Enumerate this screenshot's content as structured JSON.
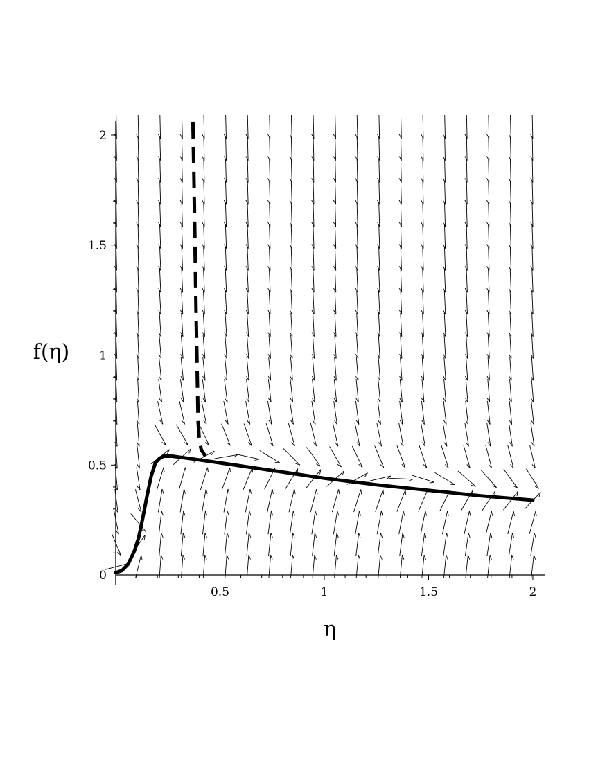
{
  "chart_data": {
    "type": "line",
    "title": "",
    "xlabel": "η",
    "ylabel": "f(η)",
    "xlim": [
      0,
      2.06
    ],
    "ylim": [
      0,
      2.06
    ],
    "x_ticks": [
      {
        "value": 0.5,
        "label": "0.5"
      },
      {
        "value": 1,
        "label": "1"
      },
      {
        "value": 1.5,
        "label": "1.5"
      },
      {
        "value": 2,
        "label": "2"
      }
    ],
    "y_ticks": [
      {
        "value": 0,
        "label": "0"
      },
      {
        "value": 0.5,
        "label": "0.5"
      },
      {
        "value": 1,
        "label": "1"
      },
      {
        "value": 1.5,
        "label": "1.5"
      },
      {
        "value": 2,
        "label": "2"
      }
    ],
    "grid": false,
    "legend": "none",
    "series": [
      {
        "style": "solid",
        "color": "#000000",
        "x": [
          0.0,
          0.03,
          0.06,
          0.09,
          0.11,
          0.13,
          0.15,
          0.17,
          0.19,
          0.21,
          0.23,
          0.27,
          0.35,
          0.5,
          0.75,
          1.0,
          1.25,
          1.5,
          1.75,
          2.0
        ],
        "y": [
          0.01,
          0.02,
          0.05,
          0.11,
          0.17,
          0.26,
          0.36,
          0.45,
          0.51,
          0.53,
          0.54,
          0.54,
          0.53,
          0.51,
          0.475,
          0.44,
          0.41,
          0.385,
          0.36,
          0.34
        ]
      },
      {
        "style": "dashed",
        "color": "#000000",
        "x": [
          0.37,
          0.375,
          0.38,
          0.385,
          0.39,
          0.393,
          0.395,
          0.4,
          0.41,
          0.43
        ],
        "y": [
          2.06,
          1.8,
          1.5,
          1.2,
          0.95,
          0.8,
          0.7,
          0.62,
          0.57,
          0.54
        ]
      }
    ],
    "direction_field": {
      "x_start": 0.0,
      "x_step": 0.105,
      "columns": 20,
      "y_start": 0.0,
      "y_step": 0.1,
      "rows": 21,
      "equilibrium_curve": "solid series"
    }
  }
}
